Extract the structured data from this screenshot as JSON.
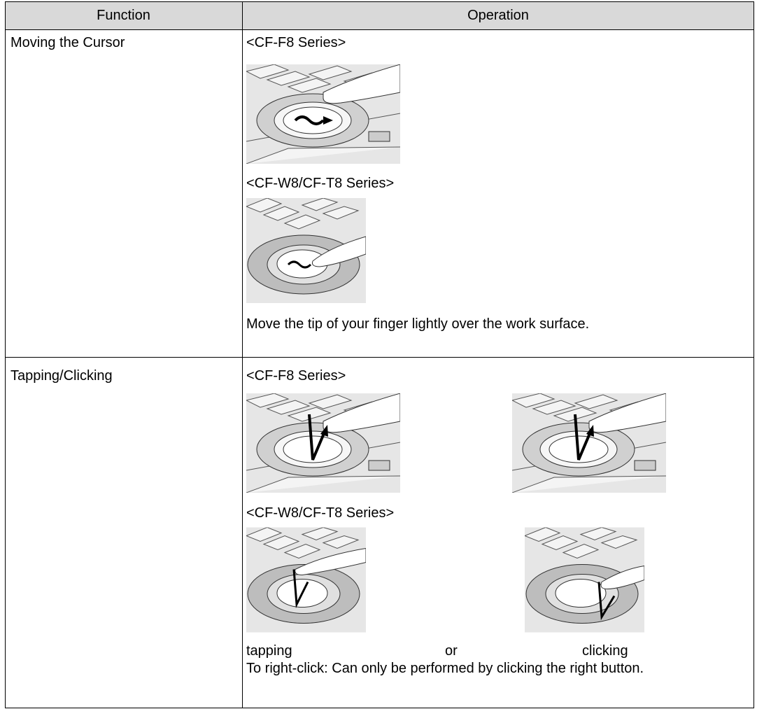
{
  "header": {
    "columns": [
      "Function",
      "Operation"
    ]
  },
  "rows": [
    {
      "function": "Moving the Cursor",
      "operation": {
        "label_1": "<CF-F8 Series>",
        "label_2": "<CF-W8/CF-T8 Series>",
        "note": "Move the tip of your finger lightly over the work surface."
      }
    },
    {
      "function": "Tapping/Clicking",
      "operation": {
        "label_1": "<CF-F8 Series>",
        "label_2": "<CF-W8/CF-T8 Series>",
        "caption": [
          "tapping",
          "or",
          "clicking"
        ],
        "note": "To right-click: Can only be performed by clicking the right button."
      }
    }
  ]
}
